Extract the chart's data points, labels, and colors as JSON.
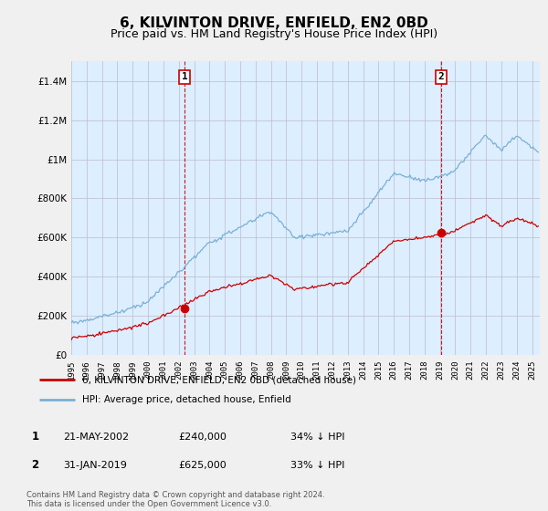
{
  "title": "6, KILVINTON DRIVE, ENFIELD, EN2 0BD",
  "subtitle": "Price paid vs. HM Land Registry's House Price Index (HPI)",
  "title_fontsize": 11,
  "subtitle_fontsize": 9,
  "ylabel_ticks": [
    "£0",
    "£200K",
    "£400K",
    "£600K",
    "£800K",
    "£1M",
    "£1.2M",
    "£1.4M"
  ],
  "ytick_values": [
    0,
    200000,
    400000,
    600000,
    800000,
    1000000,
    1200000,
    1400000
  ],
  "ylim": [
    0,
    1500000
  ],
  "xlim_start": 1995.0,
  "xlim_end": 2025.5,
  "xtick_years": [
    1995,
    1996,
    1997,
    1998,
    1999,
    2000,
    2001,
    2002,
    2003,
    2004,
    2005,
    2006,
    2007,
    2008,
    2009,
    2010,
    2011,
    2012,
    2013,
    2014,
    2015,
    2016,
    2017,
    2018,
    2019,
    2020,
    2021,
    2022,
    2023,
    2024,
    2025
  ],
  "sale1_year": 2002.38,
  "sale1_price": 240000,
  "sale1_label": "1",
  "sale2_year": 2019.08,
  "sale2_price": 625000,
  "sale2_label": "2",
  "line_color_property": "#cc0000",
  "line_color_hpi": "#7ab0d4",
  "dashed_line_color": "#cc0000",
  "annotation_box_color": "#cc0000",
  "legend_label_property": "6, KILVINTON DRIVE, ENFIELD, EN2 0BD (detached house)",
  "legend_label_hpi": "HPI: Average price, detached house, Enfield",
  "table_rows": [
    {
      "num": "1",
      "date": "21-MAY-2002",
      "price": "£240,000",
      "hpi": "34% ↓ HPI"
    },
    {
      "num": "2",
      "date": "31-JAN-2019",
      "price": "£625,000",
      "hpi": "33% ↓ HPI"
    }
  ],
  "footer": "Contains HM Land Registry data © Crown copyright and database right 2024.\nThis data is licensed under the Open Government Licence v3.0.",
  "bg_color": "#f0f0f0",
  "plot_bg_color": "#ddeeff",
  "grid_color": "#bbbbcc"
}
